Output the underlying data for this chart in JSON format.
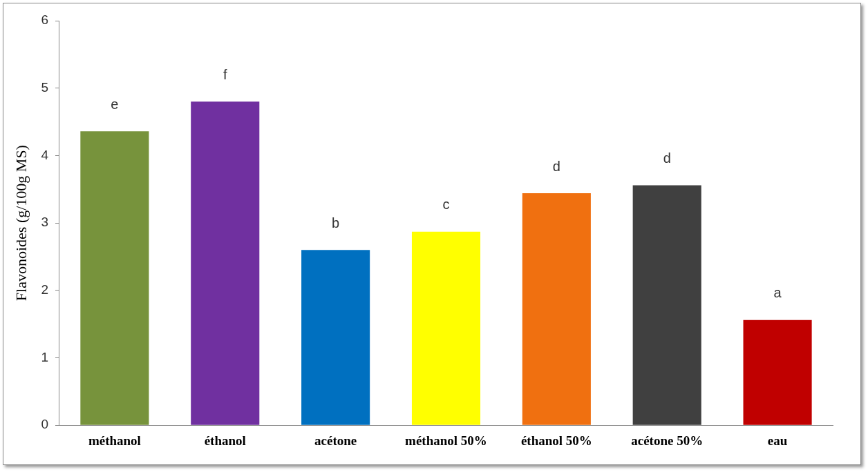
{
  "chart_data": {
    "type": "bar",
    "ylabel": "Flavonoides (g/100g MS)",
    "categories": [
      "méthanol",
      "éthanol",
      "acétone",
      "méthanol 50%",
      "éthanol 50%",
      "acétone 50%",
      "eau"
    ],
    "values": [
      4.36,
      4.8,
      2.6,
      2.87,
      3.44,
      3.56,
      1.56
    ],
    "colors": [
      "#77933c",
      "#7030a0",
      "#0070c0",
      "#ffff00",
      "#f07010",
      "#404040",
      "#c00000"
    ],
    "ylim": [
      0,
      6
    ],
    "yticks": [
      0,
      1,
      2,
      3,
      4,
      5,
      6
    ],
    "grid": false,
    "legend": false,
    "annotations": [
      "e",
      "f",
      "b",
      "c",
      "d",
      "d",
      "a"
    ]
  }
}
